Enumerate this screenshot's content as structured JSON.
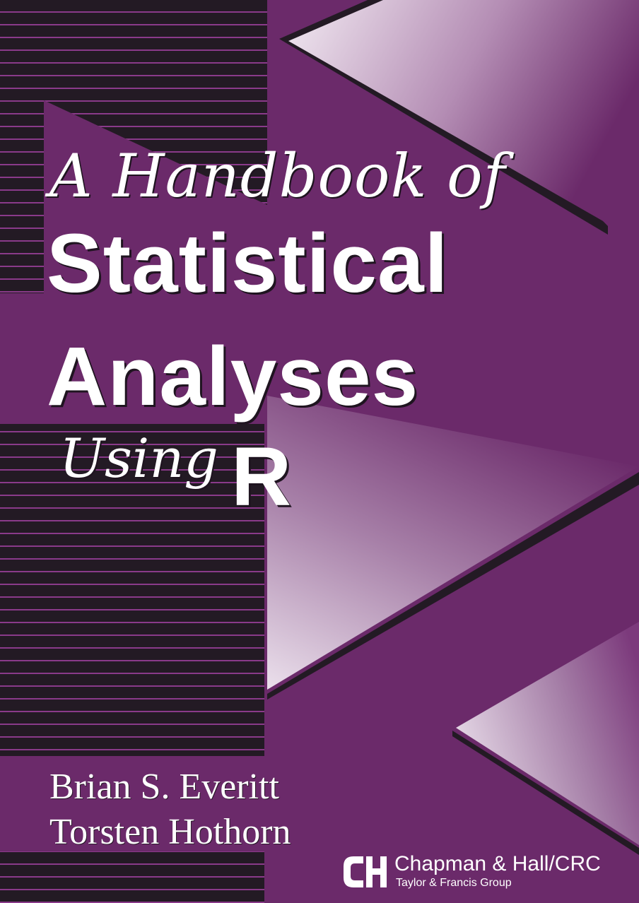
{
  "cover": {
    "title_line1": "A Handbook of",
    "title_line2": "Statistical",
    "title_line3": "Analyses",
    "title_line4": "Using",
    "title_line5": "R",
    "authors": [
      "Brian S. Everitt",
      "Torsten Hothorn"
    ],
    "publisher": {
      "name": "Chapman & Hall/CRC",
      "group": "Taylor & Francis Group",
      "logo_icon": "ch-monogram-icon"
    }
  },
  "colors": {
    "background_purple": "#6b2a6a",
    "stripe_dark": "#231a24",
    "stripe_line": "#8a3a8a",
    "light_lavender": "#e2d3e3",
    "text": "#ffffff"
  }
}
